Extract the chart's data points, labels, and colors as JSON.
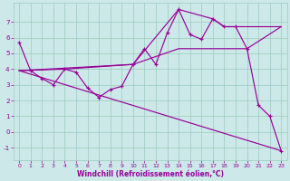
{
  "xlabel": "Windchill (Refroidissement éolien,°C)",
  "xlim": [
    -0.5,
    23.5
  ],
  "ylim": [
    -1.8,
    8.2
  ],
  "yticks": [
    -1,
    0,
    1,
    2,
    3,
    4,
    5,
    6,
    7
  ],
  "xticks": [
    0,
    1,
    2,
    3,
    4,
    5,
    6,
    7,
    8,
    9,
    10,
    11,
    12,
    13,
    14,
    15,
    16,
    17,
    18,
    19,
    20,
    21,
    22,
    23
  ],
  "bg_color": "#cce8e8",
  "grid_color": "#99ccbb",
  "line_color": "#990099",
  "line1_x": [
    0,
    1,
    2,
    3,
    4,
    5,
    6,
    7,
    8,
    9,
    10,
    11,
    12,
    13,
    14,
    15,
    16,
    17,
    18,
    19,
    20,
    21,
    22,
    23
  ],
  "line1_y": [
    5.7,
    3.9,
    3.4,
    3.0,
    4.0,
    3.8,
    2.8,
    2.2,
    2.7,
    2.9,
    4.3,
    5.3,
    4.3,
    6.3,
    7.8,
    6.2,
    5.9,
    7.2,
    6.7,
    6.7,
    5.3,
    1.7,
    1.0,
    -1.2
  ],
  "line2_x": [
    0,
    23
  ],
  "line2_y": [
    3.9,
    -1.2
  ],
  "line3_x": [
    0,
    10,
    14,
    17,
    18,
    19,
    23
  ],
  "line3_y": [
    3.9,
    4.3,
    7.8,
    7.2,
    6.7,
    6.7,
    6.7
  ],
  "line4_x": [
    0,
    4,
    10,
    14,
    20,
    23
  ],
  "line4_y": [
    3.9,
    4.0,
    4.3,
    5.3,
    5.3,
    6.7
  ]
}
